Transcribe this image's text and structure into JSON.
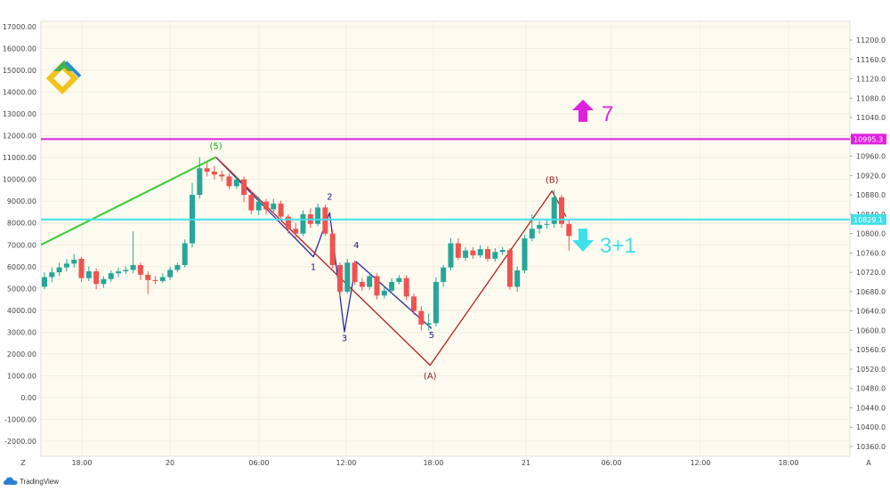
{
  "chart_data": {
    "type": "candlestick",
    "left_axis": {
      "ticks": [
        "17000.00",
        "16000.00",
        "15000.00",
        "14000.00",
        "13000.00",
        "12000.00",
        "11000.00",
        "10000.00",
        "9000.00",
        "8000.00",
        "7000.00",
        "6000.00",
        "5000.00",
        "4000.00",
        "3000.00",
        "2000.00",
        "1000.00",
        "0.00",
        "-1000.00",
        "-2000.00"
      ],
      "range": [
        -2500,
        17000
      ]
    },
    "right_axis": {
      "ticks": [
        "11200.0",
        "11160.0",
        "11120.0",
        "11080.0",
        "11040.0",
        "11000.0",
        "10960.0",
        "10920.0",
        "10880.0",
        "10840.0",
        "10800.0",
        "10760.0",
        "10720.0",
        "10680.0",
        "10640.0",
        "10600.0",
        "10560.0",
        "10520.0",
        "10480.0",
        "10440.0",
        "10400.0",
        "10360.0"
      ],
      "range": [
        10340,
        11220
      ]
    },
    "x_axis": {
      "ticks": [
        "18:00",
        "20",
        "06:00",
        "12:00",
        "18:00",
        "21",
        "06:00",
        "12:00",
        "18:00"
      ],
      "left_button": "Z",
      "right_button": "A"
    },
    "levels": [
      {
        "label": "10995.3",
        "value": 10995.3,
        "color": "#e020e0"
      },
      {
        "label": "10829.1",
        "value": 10829.1,
        "color": "#40e0e8"
      }
    ],
    "annotations": {
      "up_target": "7",
      "down_target": "3+1"
    },
    "wave_labels": [
      {
        "text": "(5)",
        "color": "#1aa31a"
      },
      {
        "text": "1",
        "color": "#1a237e"
      },
      {
        "text": "2",
        "color": "#1a237e"
      },
      {
        "text": "3",
        "color": "#1a237e"
      },
      {
        "text": "4",
        "color": "#1a237e"
      },
      {
        "text": "5",
        "color": "#1a237e"
      },
      {
        "text": "(A)",
        "color": "#8b1a1a"
      },
      {
        "text": "(B)",
        "color": "#8b1a1a"
      }
    ],
    "candles": [
      {
        "o": 10690,
        "c": 10710,
        "h": 10720,
        "l": 10685
      },
      {
        "o": 10710,
        "c": 10720,
        "h": 10730,
        "l": 10700
      },
      {
        "o": 10720,
        "c": 10730,
        "h": 10740,
        "l": 10712
      },
      {
        "o": 10730,
        "c": 10738,
        "h": 10748,
        "l": 10722
      },
      {
        "o": 10738,
        "c": 10746,
        "h": 10758,
        "l": 10730
      },
      {
        "o": 10748,
        "c": 10708,
        "h": 10752,
        "l": 10700
      },
      {
        "o": 10708,
        "c": 10722,
        "h": 10732,
        "l": 10702
      },
      {
        "o": 10722,
        "c": 10696,
        "h": 10728,
        "l": 10685
      },
      {
        "o": 10696,
        "c": 10706,
        "h": 10712,
        "l": 10688
      },
      {
        "o": 10706,
        "c": 10718,
        "h": 10724,
        "l": 10700
      },
      {
        "o": 10718,
        "c": 10722,
        "h": 10730,
        "l": 10710
      },
      {
        "o": 10722,
        "c": 10725,
        "h": 10732,
        "l": 10716
      },
      {
        "o": 10725,
        "c": 10735,
        "h": 10805,
        "l": 10718
      },
      {
        "o": 10735,
        "c": 10715,
        "h": 10740,
        "l": 10704
      },
      {
        "o": 10715,
        "c": 10704,
        "h": 10722,
        "l": 10675
      },
      {
        "o": 10704,
        "c": 10702,
        "h": 10712,
        "l": 10696
      },
      {
        "o": 10702,
        "c": 10710,
        "h": 10718,
        "l": 10698
      },
      {
        "o": 10710,
        "c": 10725,
        "h": 10732,
        "l": 10704
      },
      {
        "o": 10725,
        "c": 10735,
        "h": 10740,
        "l": 10720
      },
      {
        "o": 10735,
        "c": 10780,
        "h": 10788,
        "l": 10730
      },
      {
        "o": 10780,
        "c": 10880,
        "h": 10905,
        "l": 10772
      },
      {
        "o": 10880,
        "c": 10935,
        "h": 10958,
        "l": 10872
      },
      {
        "o": 10935,
        "c": 10928,
        "h": 10948,
        "l": 10918
      },
      {
        "o": 10928,
        "c": 10922,
        "h": 10940,
        "l": 10912
      },
      {
        "o": 10922,
        "c": 10918,
        "h": 10930,
        "l": 10908
      },
      {
        "o": 10918,
        "c": 10898,
        "h": 10924,
        "l": 10892
      },
      {
        "o": 10898,
        "c": 10912,
        "h": 10918,
        "l": 10892
      },
      {
        "o": 10912,
        "c": 10880,
        "h": 10918,
        "l": 10865
      },
      {
        "o": 10880,
        "c": 10848,
        "h": 10888,
        "l": 10840
      },
      {
        "o": 10848,
        "c": 10866,
        "h": 10876,
        "l": 10838
      },
      {
        "o": 10866,
        "c": 10850,
        "h": 10872,
        "l": 10840
      },
      {
        "o": 10850,
        "c": 10862,
        "h": 10872,
        "l": 10842
      },
      {
        "o": 10862,
        "c": 10835,
        "h": 10868,
        "l": 10826
      },
      {
        "o": 10835,
        "c": 10810,
        "h": 10840,
        "l": 10800
      },
      {
        "o": 10810,
        "c": 10800,
        "h": 10822,
        "l": 10790
      },
      {
        "o": 10800,
        "c": 10840,
        "h": 10848,
        "l": 10795
      },
      {
        "o": 10840,
        "c": 10820,
        "h": 10852,
        "l": 10812
      },
      {
        "o": 10820,
        "c": 10854,
        "h": 10862,
        "l": 10815
      },
      {
        "o": 10854,
        "c": 10800,
        "h": 10860,
        "l": 10795
      },
      {
        "o": 10800,
        "c": 10735,
        "h": 10808,
        "l": 10728
      },
      {
        "o": 10735,
        "c": 10680,
        "h": 10740,
        "l": 10670
      },
      {
        "o": 10680,
        "c": 10740,
        "h": 10748,
        "l": 10676
      },
      {
        "o": 10740,
        "c": 10700,
        "h": 10744,
        "l": 10694
      },
      {
        "o": 10700,
        "c": 10690,
        "h": 10708,
        "l": 10682
      },
      {
        "o": 10690,
        "c": 10712,
        "h": 10720,
        "l": 10684
      },
      {
        "o": 10712,
        "c": 10672,
        "h": 10718,
        "l": 10664
      },
      {
        "o": 10672,
        "c": 10682,
        "h": 10690,
        "l": 10666
      },
      {
        "o": 10682,
        "c": 10700,
        "h": 10708,
        "l": 10676
      },
      {
        "o": 10700,
        "c": 10708,
        "h": 10714,
        "l": 10695
      },
      {
        "o": 10708,
        "c": 10670,
        "h": 10714,
        "l": 10662
      },
      {
        "o": 10670,
        "c": 10640,
        "h": 10676,
        "l": 10632
      },
      {
        "o": 10640,
        "c": 10612,
        "h": 10650,
        "l": 10600
      },
      {
        "o": 10612,
        "c": 10615,
        "h": 10635,
        "l": 10600
      },
      {
        "o": 10615,
        "c": 10700,
        "h": 10710,
        "l": 10608
      },
      {
        "o": 10700,
        "c": 10730,
        "h": 10735,
        "l": 10690
      },
      {
        "o": 10730,
        "c": 10780,
        "h": 10790,
        "l": 10724
      },
      {
        "o": 10780,
        "c": 10750,
        "h": 10790,
        "l": 10745
      },
      {
        "o": 10750,
        "c": 10765,
        "h": 10772,
        "l": 10744
      },
      {
        "o": 10765,
        "c": 10755,
        "h": 10772,
        "l": 10748
      },
      {
        "o": 10755,
        "c": 10768,
        "h": 10776,
        "l": 10750
      },
      {
        "o": 10768,
        "c": 10748,
        "h": 10774,
        "l": 10742
      },
      {
        "o": 10748,
        "c": 10762,
        "h": 10770,
        "l": 10742
      },
      {
        "o": 10762,
        "c": 10766,
        "h": 10772,
        "l": 10756
      },
      {
        "o": 10766,
        "c": 10690,
        "h": 10770,
        "l": 10684
      },
      {
        "o": 10690,
        "c": 10724,
        "h": 10732,
        "l": 10680
      },
      {
        "o": 10724,
        "c": 10790,
        "h": 10798,
        "l": 10718
      },
      {
        "o": 10790,
        "c": 10810,
        "h": 10840,
        "l": 10784
      },
      {
        "o": 10810,
        "c": 10818,
        "h": 10826,
        "l": 10800
      },
      {
        "o": 10818,
        "c": 10820,
        "h": 10830,
        "l": 10810
      },
      {
        "o": 10820,
        "c": 10875,
        "h": 10890,
        "l": 10812
      },
      {
        "o": 10875,
        "c": 10820,
        "h": 10880,
        "l": 10812
      },
      {
        "o": 10820,
        "c": 10795,
        "h": 10828,
        "l": 10765
      }
    ]
  }
}
